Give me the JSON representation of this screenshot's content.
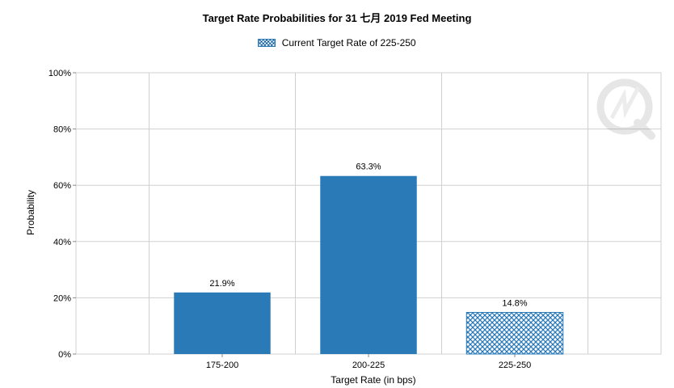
{
  "chart_data": {
    "type": "bar",
    "title": "Target Rate Probabilities for 31 七月 2019 Fed Meeting",
    "xlabel": "Target Rate (in bps)",
    "ylabel": "Probability",
    "categories": [
      "175-200",
      "200-225",
      "225-250"
    ],
    "values": [
      21.9,
      63.3,
      14.8
    ],
    "value_labels": [
      "21.9%",
      "63.3%",
      "14.8%"
    ],
    "highlighted_category": "225-250",
    "legend": [
      "Current Target Rate of 225-250"
    ],
    "legend_position": "top-center",
    "ylim": [
      0,
      100
    ],
    "yticks": [
      "0%",
      "20%",
      "40%",
      "60%",
      "80%",
      "100%"
    ],
    "grid": true,
    "colors": {
      "bar": "#2a7ab8",
      "grid": "#d0d0d0"
    }
  }
}
